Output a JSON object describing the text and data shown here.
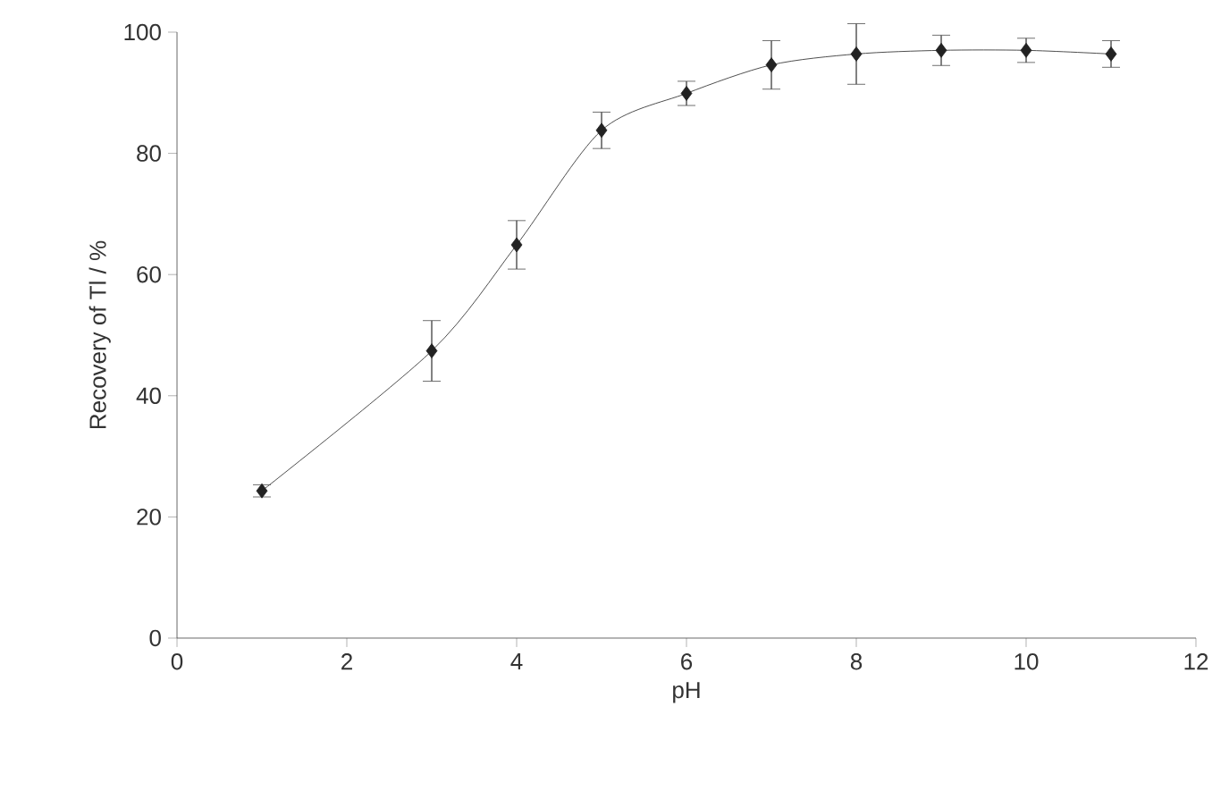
{
  "chart_data": {
    "type": "line",
    "xlabel": "pH",
    "ylabel": "Recovery of Tl / %",
    "x": [
      1,
      3,
      4,
      5,
      6,
      7,
      8,
      9,
      10,
      11
    ],
    "series": [
      {
        "color": "#222222",
        "values": [
          24.3,
          47.4,
          64.9,
          83.8,
          89.9,
          94.6,
          96.4,
          97.0,
          97.0,
          96.4
        ],
        "errors": [
          1,
          5,
          4,
          3,
          2,
          4,
          5,
          2.5,
          2,
          2.2
        ]
      }
    ],
    "xlim": [
      0,
      12
    ],
    "ylim": [
      0,
      100
    ],
    "xticks": [
      0,
      2,
      4,
      6,
      8,
      10,
      12
    ],
    "yticks": [
      0,
      20,
      40,
      60,
      80,
      100
    ],
    "marker": "diamond",
    "line_style": "solid"
  }
}
